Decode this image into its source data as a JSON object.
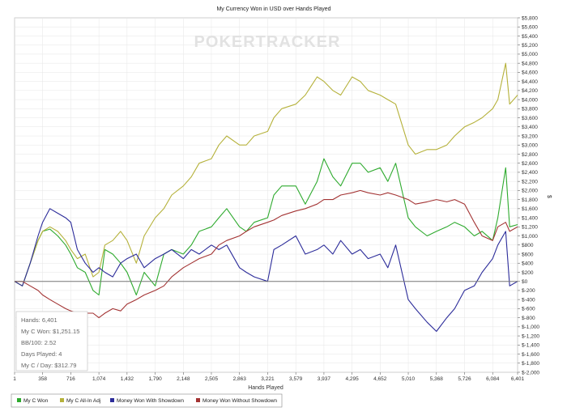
{
  "chart_data": {
    "type": "line",
    "title": "My Currency Won in USD over Hands Played",
    "xlabel": "Hands Played",
    "ylabel": "$",
    "xlim": [
      1,
      6401
    ],
    "ylim": [
      -2000,
      5800
    ],
    "x_ticks": [
      "1",
      "358",
      "716",
      "1,074",
      "1,432",
      "1,790",
      "2,148",
      "2,505",
      "2,863",
      "3,221",
      "3,579",
      "3,937",
      "4,295",
      "4,652",
      "5,010",
      "5,368",
      "5,726",
      "6,084",
      "6,401"
    ],
    "y_ticks": [
      "$5,800",
      "$5,600",
      "$5,400",
      "$5,200",
      "$5,000",
      "$4,800",
      "$4,600",
      "$4,400",
      "$4,200",
      "$4,000",
      "$3,800",
      "$3,600",
      "$3,400",
      "$3,200",
      "$3,000",
      "$2,800",
      "$2,600",
      "$2,400",
      "$2,200",
      "$2,000",
      "$1,800",
      "$1,600",
      "$1,400",
      "$1,200",
      "$1,000",
      "$800",
      "$600",
      "$400",
      "$200",
      "$0",
      "$-200",
      "$-400",
      "$-600",
      "$-800",
      "$-1,000",
      "$-1,200",
      "$-1,400",
      "$-1,600",
      "$-1,800",
      "$-2,000"
    ],
    "watermark": "POKERTRACKER",
    "grid": true,
    "legend_position": "bottom",
    "stats": [
      "Hands: 6,401",
      "My C Won: $1,251.15",
      "BB/100: 2.52",
      "Days Played: 4",
      "My C / Day: $312.79"
    ],
    "series": [
      {
        "name": "My C Won",
        "color": "#2eaa2e",
        "x": [
          1,
          100,
          200,
          300,
          358,
          450,
          550,
          650,
          716,
          800,
          900,
          1000,
          1074,
          1150,
          1250,
          1350,
          1432,
          1550,
          1650,
          1790,
          1900,
          2000,
          2148,
          2250,
          2350,
          2505,
          2600,
          2700,
          2863,
          2950,
          3050,
          3221,
          3300,
          3400,
          3579,
          3700,
          3850,
          3937,
          4050,
          4150,
          4295,
          4400,
          4500,
          4652,
          4750,
          4850,
          5010,
          5100,
          5250,
          5368,
          5500,
          5600,
          5726,
          5850,
          5950,
          6084,
          6150,
          6250,
          6300,
          6401
        ],
        "y": [
          0,
          -100,
          400,
          900,
          1100,
          1150,
          1000,
          800,
          600,
          300,
          200,
          -200,
          -300,
          700,
          600,
          400,
          200,
          -300,
          200,
          -100,
          600,
          700,
          600,
          800,
          1100,
          1200,
          1400,
          1600,
          1200,
          1100,
          1300,
          1400,
          1900,
          2100,
          2100,
          1700,
          2200,
          2700,
          2300,
          2100,
          2600,
          2600,
          2400,
          2500,
          2200,
          2600,
          1400,
          1200,
          1000,
          1100,
          1200,
          1300,
          1200,
          1000,
          1100,
          900,
          1400,
          2500,
          1200,
          1250
        ]
      },
      {
        "name": "My C All-In Adj",
        "color": "#b5b13a",
        "x": [
          1,
          100,
          200,
          300,
          358,
          450,
          550,
          650,
          716,
          800,
          900,
          1000,
          1074,
          1150,
          1250,
          1350,
          1432,
          1550,
          1650,
          1790,
          1900,
          2000,
          2148,
          2250,
          2350,
          2505,
          2600,
          2700,
          2863,
          2950,
          3050,
          3221,
          3300,
          3400,
          3579,
          3700,
          3850,
          3937,
          4050,
          4150,
          4295,
          4400,
          4500,
          4652,
          4750,
          4850,
          5010,
          5100,
          5250,
          5368,
          5500,
          5600,
          5726,
          5850,
          5950,
          6084,
          6150,
          6250,
          6300,
          6401
        ],
        "y": [
          0,
          -100,
          400,
          900,
          1100,
          1200,
          1100,
          900,
          700,
          500,
          600,
          100,
          200,
          800,
          900,
          1100,
          900,
          400,
          1000,
          1400,
          1600,
          1900,
          2100,
          2300,
          2600,
          2700,
          3000,
          3200,
          3000,
          3000,
          3200,
          3300,
          3600,
          3800,
          3900,
          4100,
          4500,
          4400,
          4200,
          4100,
          4500,
          4400,
          4200,
          4100,
          4000,
          3900,
          3000,
          2800,
          2900,
          2900,
          3000,
          3200,
          3400,
          3500,
          3600,
          3800,
          4000,
          4800,
          3900,
          4100
        ]
      },
      {
        "name": "Money Won With Showdown",
        "color": "#2c2c9a",
        "x": [
          1,
          100,
          200,
          300,
          358,
          450,
          550,
          650,
          716,
          800,
          900,
          1000,
          1074,
          1150,
          1250,
          1350,
          1432,
          1550,
          1650,
          1790,
          1900,
          2000,
          2148,
          2250,
          2350,
          2505,
          2600,
          2700,
          2863,
          2950,
          3050,
          3221,
          3300,
          3400,
          3579,
          3700,
          3850,
          3937,
          4050,
          4150,
          4295,
          4400,
          4500,
          4652,
          4750,
          4850,
          5010,
          5100,
          5250,
          5368,
          5500,
          5600,
          5726,
          5850,
          5950,
          6084,
          6150,
          6250,
          6300,
          6401
        ],
        "y": [
          0,
          -100,
          400,
          1000,
          1300,
          1600,
          1500,
          1400,
          1300,
          700,
          400,
          200,
          300,
          200,
          100,
          400,
          500,
          600,
          300,
          500,
          600,
          700,
          500,
          700,
          600,
          800,
          700,
          800,
          300,
          200,
          100,
          0,
          700,
          800,
          1000,
          600,
          700,
          800,
          600,
          900,
          600,
          700,
          500,
          600,
          300,
          800,
          -400,
          -600,
          -900,
          -1100,
          -800,
          -600,
          -200,
          -100,
          200,
          500,
          800,
          1100,
          -100,
          0
        ]
      },
      {
        "name": "Money Won Without Showdown",
        "color": "#a33333",
        "x": [
          1,
          100,
          200,
          300,
          358,
          450,
          550,
          650,
          716,
          800,
          900,
          1000,
          1074,
          1150,
          1250,
          1350,
          1432,
          1550,
          1650,
          1790,
          1900,
          2000,
          2148,
          2250,
          2350,
          2505,
          2600,
          2700,
          2863,
          2950,
          3050,
          3221,
          3300,
          3400,
          3579,
          3700,
          3850,
          3937,
          4050,
          4150,
          4295,
          4400,
          4500,
          4652,
          4750,
          4850,
          5010,
          5100,
          5250,
          5368,
          5500,
          5600,
          5726,
          5850,
          5950,
          6084,
          6150,
          6250,
          6300,
          6401
        ],
        "y": [
          0,
          0,
          -100,
          -200,
          -300,
          -400,
          -500,
          -600,
          -650,
          -700,
          -700,
          -700,
          -800,
          -700,
          -600,
          -650,
          -500,
          -400,
          -300,
          -200,
          -100,
          100,
          300,
          400,
          500,
          600,
          800,
          900,
          1000,
          1100,
          1200,
          1300,
          1350,
          1450,
          1550,
          1600,
          1700,
          1800,
          1800,
          1900,
          1950,
          2000,
          1950,
          1900,
          1950,
          1900,
          1800,
          1700,
          1750,
          1800,
          1750,
          1800,
          1700,
          1300,
          1000,
          900,
          1200,
          1300,
          1100,
          1200
        ]
      }
    ]
  }
}
